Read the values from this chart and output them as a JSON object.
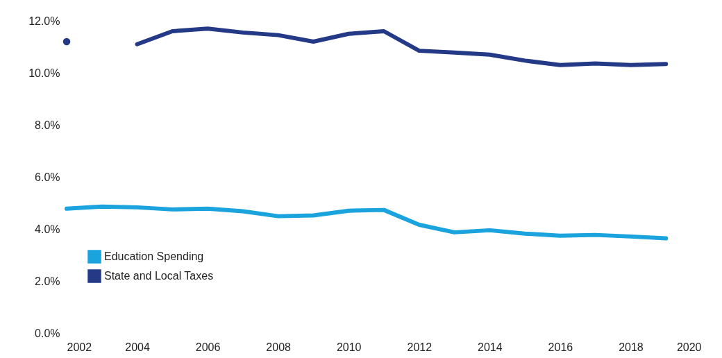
{
  "chart_data": {
    "type": "line",
    "x": [
      2002,
      2003,
      2004,
      2005,
      2006,
      2007,
      2008,
      2009,
      2010,
      2011,
      2012,
      2013,
      2014,
      2015,
      2016,
      2017,
      2018,
      2019
    ],
    "series": [
      {
        "name": "Education Spending",
        "color": "#1aa3dc",
        "values": [
          4.78,
          4.86,
          4.83,
          4.75,
          4.78,
          4.68,
          4.49,
          4.52,
          4.7,
          4.73,
          4.16,
          3.87,
          3.95,
          3.82,
          3.74,
          3.77,
          3.71,
          3.64
        ]
      },
      {
        "name": "State and Local Taxes",
        "color": "#253a87",
        "values": [
          11.2,
          null,
          11.1,
          11.6,
          11.7,
          11.55,
          11.45,
          11.2,
          11.5,
          11.6,
          10.85,
          10.78,
          10.7,
          10.47,
          10.3,
          10.36,
          10.3,
          10.34
        ]
      }
    ],
    "xlim": [
      2002,
      2020
    ],
    "xticks": [
      2002,
      2004,
      2006,
      2008,
      2010,
      2012,
      2014,
      2016,
      2018,
      2020
    ],
    "ylim": [
      0,
      12
    ],
    "yticks": [
      {
        "value": 0,
        "label": "0.0%"
      },
      {
        "value": 2,
        "label": "2.0%"
      },
      {
        "value": 4,
        "label": "4.0%"
      },
      {
        "value": 6,
        "label": "6.0%"
      },
      {
        "value": 8,
        "label": "8.0%"
      },
      {
        "value": 10,
        "label": "10.0%"
      },
      {
        "value": 12,
        "label": "12.0%"
      }
    ],
    "grid": false,
    "legend": "bottom left"
  }
}
